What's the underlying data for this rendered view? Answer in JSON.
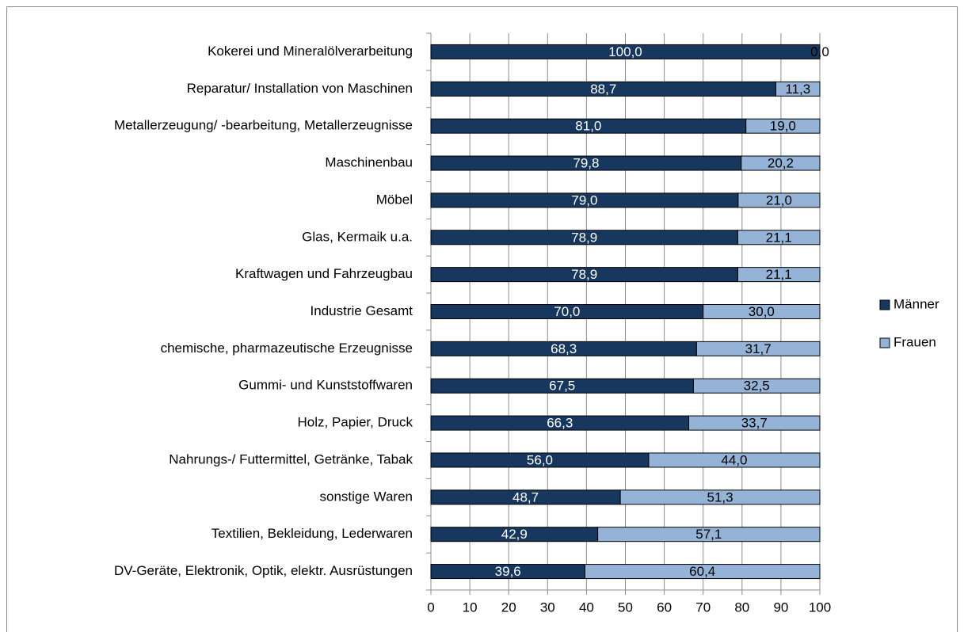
{
  "chart_data": {
    "type": "stacked-barh",
    "categories": [
      "Kokerei und Mineralölverarbeitung",
      "Reparatur/ Installation von Maschinen",
      "Metallerzeugung/ -bearbeitung, Metallerzeugnisse",
      "Maschinenbau",
      "Möbel",
      "Glas, Kermaik u.a.",
      "Kraftwagen und Fahrzeugbau",
      "Industrie Gesamt",
      "chemische, pharmazeutische Erzeugnisse",
      "Gummi- und Kunststoffwaren",
      "Holz, Papier, Druck",
      "Nahrungs-/ Futtermittel, Getränke, Tabak",
      "sonstige Waren",
      "Textilien, Bekleidung, Lederwaren",
      "DV-Geräte, Elektronik, Optik, elektr. Ausrüstungen"
    ],
    "series": [
      {
        "name": "Männer",
        "color": "#17375e",
        "values": [
          100.0,
          88.7,
          81.0,
          79.8,
          79.0,
          78.9,
          78.9,
          70.0,
          68.3,
          67.5,
          66.3,
          56.0,
          48.7,
          42.9,
          39.6
        ],
        "value_labels": [
          "100,0",
          "88,7",
          "81,0",
          "79,8",
          "79,0",
          "78,9",
          "78,9",
          "70,0",
          "68,3",
          "67,5",
          "66,3",
          "56,0",
          "48,7",
          "42,9",
          "39,6"
        ]
      },
      {
        "name": "Frauen",
        "color": "#95b3d7",
        "values": [
          0.0,
          11.3,
          19.0,
          20.2,
          21.0,
          21.1,
          21.1,
          30.0,
          31.7,
          32.5,
          33.7,
          44.0,
          51.3,
          57.1,
          60.4
        ],
        "value_labels": [
          "0,0",
          "11,3",
          "19,0",
          "20,2",
          "21,0",
          "21,1",
          "21,1",
          "30,0",
          "31,7",
          "32,5",
          "33,7",
          "44,0",
          "51,3",
          "57,1",
          "60,4"
        ]
      }
    ],
    "xlim": [
      0,
      100
    ],
    "xticks": [
      0,
      10,
      20,
      30,
      40,
      50,
      60,
      70,
      80,
      90,
      100
    ],
    "grid": true,
    "legend": "right"
  }
}
